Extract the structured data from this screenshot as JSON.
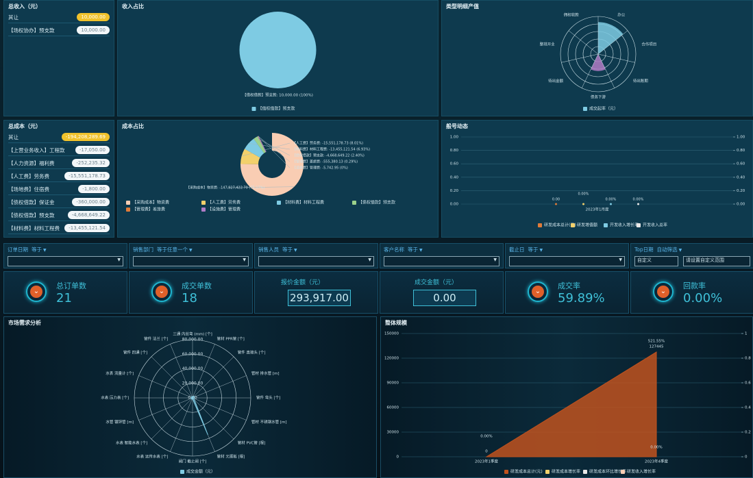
{
  "income": {
    "title": "总收入（元）",
    "rows": [
      {
        "label": "其让",
        "value": "10,000.00"
      },
      {
        "label": "【场权协办】预支款",
        "value": "10,000.00"
      }
    ]
  },
  "income_share": {
    "title": "收入占比",
    "chart": {
      "type": "pie",
      "categories": [
        "【借权借款】预支款"
      ],
      "values": [
        100
      ],
      "value_labels": [
        "【借权借款】预支款: 10,000.00 (100%)"
      ],
      "colors": [
        "#7ecbe3"
      ]
    }
  },
  "type_detail": {
    "title": "类型明细产值",
    "chart": {
      "type": "polar",
      "categories": [
        "办公",
        "合作项目",
        "待出账期",
        "债务下游",
        "待出金额",
        "整排开业",
        "佣权收款"
      ],
      "values": [
        85,
        0,
        0,
        45,
        0,
        0,
        0
      ],
      "colors": [
        "#7ecbe3",
        "#7ecbe3",
        "#7ecbe3",
        "#b07cc6",
        "#7ecbe3",
        "#7ecbe3",
        "#7ecbe3"
      ],
      "rlim": [
        0,
        100
      ],
      "legend": "成交起率（元）"
    }
  },
  "cost": {
    "title": "总成本（元）",
    "rows": [
      {
        "label": "其让",
        "value": "-194,208,289.69"
      },
      {
        "label": "【上营业务收入】工程款",
        "value": "-17,050.00"
      },
      {
        "label": "【人力资源】福利费",
        "value": "-252,235.32"
      },
      {
        "label": "【人工费】劳务费",
        "value": "-15,551,178.73"
      },
      {
        "label": "【场地费】住宿费",
        "value": "-1,800.00"
      },
      {
        "label": "【债权借款】保证金",
        "value": "-360,000.00"
      },
      {
        "label": "【债权借款】预支款",
        "value": "-4,668,649.22"
      },
      {
        "label": "【材料费】材料工程费",
        "value": "-13,455,121.54"
      }
    ]
  },
  "cost_share": {
    "title": "成本占比",
    "chart": {
      "type": "donut",
      "categories": [
        "【采购成本】物资费",
        "【人工费】劳务费",
        "【材料费】材料工程费",
        "【债权借款】预支款",
        "【管理费】差旅费",
        "【设施费】管理费"
      ],
      "values": [
        75.17,
        8.01,
        6.93,
        2.4,
        0.29,
        0
      ],
      "value_labels": [
        "【采购成本】物资费: -147,927,422.70 (75.17%)",
        "【人工费】劳务费: -15,551,178.73 (8.01%)",
        "【材料费】材料工程费: -13,455,121.54 (6.93%)",
        "【债权借款】预支款: -4,668,649.22 (2.40%)",
        "【管理费】差旅费: -555,380.13 (0.29%)",
        "【设施费】管理费: -5,742.95 (0%)"
      ],
      "colors": [
        "#f9cdb3",
        "#f2d06b",
        "#7ecbe3",
        "#9bd18b",
        "#e07b39",
        "#b07cc6"
      ]
    }
  },
  "trend": {
    "title": "般号动态",
    "chart": {
      "type": "line",
      "categories": [
        "2023年1月度"
      ],
      "series": [
        {
          "name": "研发成本总计(元)",
          "color": "#e07b39",
          "values": [
            0
          ],
          "value_labels": [
            "0.00"
          ]
        },
        {
          "name": "研发增值额",
          "color": "#f2d06b",
          "values": [
            0
          ],
          "value_labels": [
            "0.00%"
          ]
        },
        {
          "name": "开发收入增长率",
          "color": "#7ecbe3",
          "values": [
            0
          ],
          "value_labels": [
            "0.00%"
          ]
        },
        {
          "name": "开发收入总率",
          "color": "#e8e8e8",
          "values": [
            0
          ],
          "value_labels": [
            "0.00%"
          ]
        }
      ],
      "ylim": [
        0,
        1
      ],
      "yticks": [
        {
          "value": 0,
          "label": "0.00"
        },
        {
          "value": 0.2,
          "label": "0.20"
        },
        {
          "value": 0.4,
          "label": "0.40"
        },
        {
          "value": 0.6,
          "label": "0.60"
        },
        {
          "value": 0.8,
          "label": "0.80"
        },
        {
          "value": 1,
          "label": "1.00"
        }
      ],
      "y2lim": [
        0,
        1
      ],
      "y2ticks": [
        {
          "value": 0,
          "label": "0.00"
        },
        {
          "value": 0.2,
          "label": "0.20"
        },
        {
          "value": 0.4,
          "label": "0.40"
        },
        {
          "value": 0.6,
          "label": "0.60"
        },
        {
          "value": 0.8,
          "label": "0.80"
        },
        {
          "value": 1,
          "label": "1.00"
        }
      ]
    }
  },
  "filters": [
    {
      "label": "订单日期",
      "op": "等于"
    },
    {
      "label": "销售部门",
      "op": "等于任意一个"
    },
    {
      "label": "销售人员",
      "op": "等于"
    },
    {
      "label": "客户名称",
      "op": "等于"
    },
    {
      "label": "截止日",
      "op": "等于"
    },
    {
      "label": "Top日期",
      "op": "自动筛选",
      "select": "自定义",
      "placeholder": "请设置自定义范围"
    }
  ],
  "kpis": [
    {
      "label": "总订单数",
      "value": "21"
    },
    {
      "label": "成交单数",
      "value": "18"
    },
    {
      "label": "报价金额（元）",
      "value": "293,917.00"
    },
    {
      "label": "成交金额（元）",
      "value": "0.00"
    },
    {
      "label": "成交率",
      "value": "59.89%"
    },
    {
      "label": "回款率",
      "value": "0.00%"
    }
  ],
  "market": {
    "title": "市场需求分析",
    "chart": {
      "type": "radar",
      "categories": [
        "三通 内丝弯 (mm) [个]",
        "管材 PPR管 [个]",
        "管件 直接头 [个]",
        "管材 排水管 [m]",
        "管件 弯头 [个]",
        "管材 不锈钢水管 [m]",
        "管材 PVC管 [根]",
        "管材 元振板 [根]",
        "阀门 截止阀 [个]",
        "水表 远传水表 [个]",
        "水表 智能水表 [个]",
        "水管 镀锌管 [m]",
        "水表 压力表 [个]",
        "水表 流量计 [个]",
        "管件 四通 [个]",
        "管件 法兰 [个]"
      ],
      "values": [
        2000,
        1500,
        3000,
        2500,
        1800,
        2200,
        3500,
        55000,
        1200,
        2000,
        1600,
        2400,
        1000,
        1900,
        2100,
        1300
      ],
      "rlim": [
        0,
        80000
      ],
      "rticks": [
        {
          "value": 0,
          "label": "0.00"
        },
        {
          "value": 20000,
          "label": "20,000.00"
        },
        {
          "value": 40000,
          "label": "40,000.00"
        },
        {
          "value": 60000,
          "label": "60,000.00"
        },
        {
          "value": 80000,
          "label": "80,000.00"
        }
      ],
      "color": "#7ecbe3",
      "legend": "成交金额（元）"
    }
  },
  "overall": {
    "title": "整体规模",
    "chart": {
      "type": "area",
      "categories": [
        "2023年1季度",
        "2023年4季度"
      ],
      "series": [
        {
          "name": "研发成本总计(元)",
          "color": "#c0521e",
          "values": [
            0,
            127445
          ],
          "value_labels": [
            "0",
            "127445"
          ]
        }
      ],
      "annotations": [
        "0.00%",
        "521.55%",
        "0.00%"
      ],
      "other_legend": [
        {
          "name": "研发成本增长率",
          "color": "#f2d06b"
        },
        {
          "name": "研发成本环比增长率",
          "color": "#e8e8e8"
        },
        {
          "name": "研发收入增长率",
          "color": "#f9cdb3"
        }
      ],
      "ylim": [
        0,
        150000
      ],
      "yticks": [
        0,
        30000,
        60000,
        90000,
        120000,
        150000
      ],
      "y2lim": [
        0,
        1
      ],
      "y2ticks": [
        0,
        0.2,
        0.4,
        0.6,
        0.8,
        1
      ]
    }
  }
}
